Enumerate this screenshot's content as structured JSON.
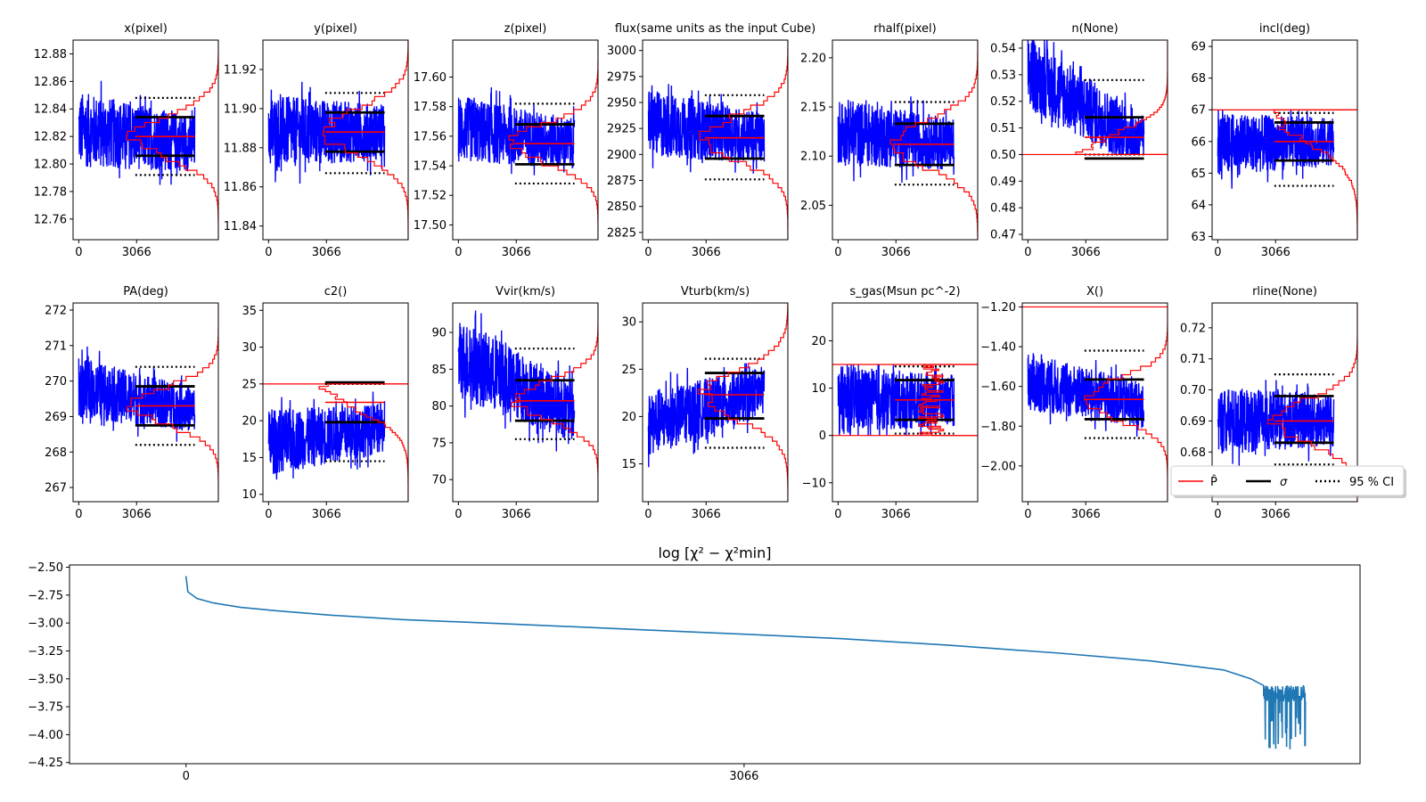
{
  "chart_data": [
    {
      "type": "line",
      "title": "x(pixel)",
      "ylim": [
        12.745,
        12.89
      ],
      "yticks": [
        12.76,
        12.78,
        12.8,
        12.82,
        12.84,
        12.86,
        12.88
      ],
      "xticks": [
        0,
        3066
      ],
      "xlim": [
        -300,
        7400
      ],
      "trace": {
        "start": 12.825,
        "trend": 0,
        "spread": 0.055,
        "end": 12.815
      },
      "p_hat": 12.82,
      "sigma": [
        12.806,
        12.834
      ],
      "ci95": [
        12.792,
        12.848
      ],
      "hist": {
        "peak": 12.82,
        "width": 0.016,
        "extent": [
          12.745,
          12.89
        ]
      }
    },
    {
      "type": "line",
      "title": "y(pixel)",
      "ylim": [
        11.833,
        11.935
      ],
      "yticks": [
        11.84,
        11.86,
        11.88,
        11.9,
        11.92
      ],
      "xticks": [
        0,
        3066
      ],
      "xlim": [
        -300,
        7400
      ],
      "trace": {
        "start": 11.888,
        "trend": 0,
        "spread": 0.038,
        "end": 11.888
      },
      "p_hat": 11.888,
      "sigma": [
        11.878,
        11.898
      ],
      "ci95": [
        11.867,
        11.908
      ],
      "hist": {
        "peak": 11.888,
        "width": 0.012,
        "extent": [
          11.833,
          11.935
        ]
      }
    },
    {
      "type": "line",
      "title": "z(pixel)",
      "ylim": [
        17.49,
        17.625
      ],
      "yticks": [
        17.5,
        17.52,
        17.54,
        17.56,
        17.58,
        17.6
      ],
      "xticks": [
        0,
        3066
      ],
      "xlim": [
        -300,
        7400
      ],
      "trace": {
        "start": 17.565,
        "trend": 0,
        "spread": 0.045,
        "end": 17.555
      },
      "p_hat": 17.555,
      "sigma": [
        17.541,
        17.568
      ],
      "ci95": [
        17.528,
        17.582
      ],
      "hist": {
        "peak": 17.555,
        "width": 0.014,
        "extent": [
          17.49,
          17.625
        ]
      }
    },
    {
      "type": "line",
      "title": "flux(same units as the input Cube)",
      "ylim": [
        2818,
        3010
      ],
      "yticks": [
        2825,
        2850,
        2875,
        2900,
        2925,
        2950,
        2975,
        3000
      ],
      "xticks": [
        0,
        3066
      ],
      "xlim": [
        -300,
        7400
      ],
      "trace": {
        "start": 2930,
        "trend": 0,
        "spread": 65,
        "end": 2916
      },
      "p_hat": 2916,
      "sigma": [
        2896,
        2937
      ],
      "ci95": [
        2876,
        2957
      ],
      "hist": {
        "peak": 2916,
        "width": 22,
        "extent": [
          2818,
          3010
        ]
      }
    },
    {
      "type": "line",
      "title": "rhalf(pixel)",
      "ylim": [
        2.015,
        2.218
      ],
      "yticks": [
        2.05,
        2.1,
        2.15,
        2.2
      ],
      "xticks": [
        0,
        3066
      ],
      "xlim": [
        -300,
        7400
      ],
      "trace": {
        "start": 2.125,
        "trend": 0,
        "spread": 0.07,
        "end": 2.112
      },
      "p_hat": 2.112,
      "sigma": [
        2.091,
        2.133
      ],
      "ci95": [
        2.071,
        2.155
      ],
      "hist": {
        "peak": 2.112,
        "width": 0.024,
        "extent": [
          2.015,
          2.218
        ]
      }
    },
    {
      "type": "line",
      "title": "n(None)",
      "ylim": [
        0.468,
        0.543
      ],
      "yticks": [
        0.47,
        0.48,
        0.49,
        0.5,
        0.51,
        0.52,
        0.53,
        0.54
      ],
      "xticks": [
        0,
        3066
      ],
      "xlim": [
        -300,
        7400
      ],
      "trace": {
        "start": 0.525,
        "trend": -0.012,
        "spread": 0.028,
        "end": 0.51
      },
      "floor": 0.5,
      "p_hat": 0.5065,
      "sigma": [
        0.4985,
        0.514
      ],
      "ci95": [
        0.5,
        0.528
      ],
      "limit_line": 0.5,
      "hist": {
        "peak": 0.5,
        "width": 0.008,
        "extent": [
          0.5,
          0.543
        ],
        "half": true
      }
    },
    {
      "type": "line",
      "title": "incl(deg)",
      "ylim": [
        62.9,
        69.2
      ],
      "yticks": [
        63,
        64,
        65,
        66,
        67,
        68,
        69
      ],
      "xticks": [
        0,
        3066
      ],
      "xlim": [
        -300,
        7400
      ],
      "trace": {
        "start": 65.9,
        "trend": 0,
        "spread": 2.0,
        "end": 66.0
      },
      "ceiling": 67,
      "p_hat": 66.0,
      "sigma": [
        65.4,
        66.6
      ],
      "ci95": [
        64.6,
        66.9
      ],
      "limit_line": 67,
      "hist": {
        "peak": 67,
        "width": 1.0,
        "extent": [
          62.9,
          67
        ],
        "half": true
      }
    },
    {
      "type": "line",
      "title": "PA(deg)",
      "ylim": [
        266.6,
        272.2
      ],
      "yticks": [
        267,
        268,
        269,
        270,
        271,
        272
      ],
      "xticks": [
        0,
        3066
      ],
      "xlim": [
        -300,
        7400
      ],
      "trace": {
        "start": 269.7,
        "trend": -0.2,
        "spread": 1.7,
        "end": 269.3
      },
      "p_hat": 269.3,
      "sigma": [
        268.75,
        269.85
      ],
      "ci95": [
        268.2,
        270.4
      ],
      "hist": {
        "peak": 269.3,
        "width": 0.55,
        "extent": [
          266.6,
          272.2
        ]
      }
    },
    {
      "type": "line",
      "title": "c2()",
      "ylim": [
        9.0,
        36.0
      ],
      "yticks": [
        10,
        15,
        20,
        25,
        30,
        35
      ],
      "xticks": [
        0,
        3066
      ],
      "xlim": [
        -300,
        7400
      ],
      "trace": {
        "start": 17,
        "trend": 0,
        "spread": 9,
        "end": 19
      },
      "ceiling": 25,
      "p_hat": 22.5,
      "sigma": [
        19.8,
        25.2
      ],
      "ci95": [
        14.5,
        25.0
      ],
      "limit_line": 25,
      "hist": {
        "peak": 25,
        "width": 3.5,
        "extent": [
          9.0,
          25
        ],
        "half": true
      }
    },
    {
      "type": "line",
      "title": "Vvir(km/s)",
      "ylim": [
        67,
        94
      ],
      "yticks": [
        70,
        75,
        80,
        85,
        90
      ],
      "xticks": [
        0,
        3066
      ],
      "xlim": [
        -300,
        7400
      ],
      "trace": {
        "start": 85,
        "trend": -3,
        "spread": 11,
        "end": 80.7
      },
      "p_hat": 80.7,
      "sigma": [
        78.0,
        83.5
      ],
      "ci95": [
        75.5,
        87.8
      ],
      "hist": {
        "peak": 80.7,
        "width": 2.7,
        "extent": [
          67,
          94
        ]
      }
    },
    {
      "type": "line",
      "title": "Vturb(km/s)",
      "ylim": [
        11,
        32
      ],
      "yticks": [
        15,
        20,
        25,
        30
      ],
      "xticks": [
        0,
        3066
      ],
      "xlim": [
        -300,
        7400
      ],
      "trace": {
        "start": 20,
        "trend": 1.5,
        "spread": 7,
        "end": 22
      },
      "p_hat": 22.3,
      "sigma": [
        19.8,
        24.6
      ],
      "ci95": [
        16.7,
        26.1
      ],
      "hist": {
        "peak": 22.3,
        "width": 2.6,
        "extent": [
          11,
          32
        ]
      }
    },
    {
      "type": "line",
      "title": "s_gas(Msun pc^-2)",
      "ylim": [
        -14,
        28
      ],
      "yticks": [
        -10,
        0,
        10,
        20
      ],
      "xticks": [
        0,
        3066
      ],
      "xlim": [
        -300,
        7400
      ],
      "trace": {
        "start": 7.5,
        "trend": 0,
        "spread": 14.5,
        "end": 7.5
      },
      "floor": 0,
      "ceiling": 15,
      "p_hat": 7.5,
      "sigma": [
        3.3,
        11.7
      ],
      "ci95": [
        0.4,
        14.6
      ],
      "limit_line": [
        0,
        15
      ],
      "hist": {
        "peak": 7.5,
        "width": 6,
        "extent": [
          0,
          15
        ],
        "flat": true
      }
    },
    {
      "type": "line",
      "title": "X()",
      "ylim": [
        -2.18,
        -1.18
      ],
      "yticks": [
        -2.0,
        -1.8,
        -1.6,
        -1.4,
        -1.2
      ],
      "xticks": [
        0,
        3066
      ],
      "xlim": [
        -300,
        7400
      ],
      "trace": {
        "start": -1.6,
        "trend": -0.05,
        "spread": 0.3,
        "end": -1.67
      },
      "p_hat": -1.665,
      "sigma": [
        -1.765,
        -1.565
      ],
      "ci95": [
        -1.86,
        -1.42
      ],
      "limit_line": -1.2,
      "hist": {
        "peak": -1.665,
        "width": 0.1,
        "extent": [
          -2.18,
          -1.2
        ]
      }
    },
    {
      "type": "line",
      "title": "rline(None)",
      "ylim": [
        0.664,
        0.728
      ],
      "yticks": [
        0.67,
        0.68,
        0.69,
        0.7,
        0.71,
        0.72
      ],
      "xticks": [
        0,
        3066
      ],
      "xlim": [
        -300,
        7400
      ],
      "trace": {
        "start": 0.69,
        "trend": 0,
        "spread": 0.022,
        "end": 0.69
      },
      "p_hat": 0.69,
      "sigma": [
        0.683,
        0.698
      ],
      "ci95": [
        0.676,
        0.705
      ],
      "hist": {
        "peak": 0.69,
        "width": 0.007,
        "extent": [
          0.664,
          0.728
        ]
      }
    },
    {
      "type": "line",
      "title": "log  [χ² − χ²min]",
      "ylim": [
        -4.26,
        -2.48
      ],
      "yticks": [
        -4.25,
        -4.0,
        -3.75,
        -3.5,
        -3.25,
        -3.0,
        -2.75,
        -2.5
      ],
      "xticks": [
        0,
        3066
      ],
      "xlim": [
        -640,
        6450
      ],
      "series": {
        "points": [
          [
            0,
            -2.58
          ],
          [
            10,
            -2.72
          ],
          [
            60,
            -2.78
          ],
          [
            150,
            -2.82
          ],
          [
            300,
            -2.86
          ],
          [
            500,
            -2.89
          ],
          [
            800,
            -2.93
          ],
          [
            1200,
            -2.97
          ],
          [
            1800,
            -3.01
          ],
          [
            2500,
            -3.06
          ],
          [
            3066,
            -3.1
          ],
          [
            3600,
            -3.14
          ],
          [
            4200,
            -3.2
          ],
          [
            4800,
            -3.27
          ],
          [
            5300,
            -3.34
          ],
          [
            5700,
            -3.42
          ],
          [
            5850,
            -3.5
          ],
          [
            5920,
            -3.56
          ]
        ],
        "noise": {
          "from": 5920,
          "to": 6150,
          "center": -3.66,
          "spread": 0.24
        }
      },
      "line_color": "#1f77b4"
    }
  ],
  "legend": {
    "entries": [
      {
        "label": "P̂",
        "style": "solid",
        "color": "#ff0000"
      },
      {
        "label": "σ",
        "style": "solid",
        "color": "#000000"
      },
      {
        "label": "95 % CI",
        "style": "dotted",
        "color": "#000000"
      }
    ],
    "placement": "right of last panel, row 2"
  },
  "colors": {
    "trace": "#0000ff",
    "hist": "#ff0000",
    "p_hat": "#ff0000",
    "sigma": "#000000",
    "ci95": "#000000"
  }
}
